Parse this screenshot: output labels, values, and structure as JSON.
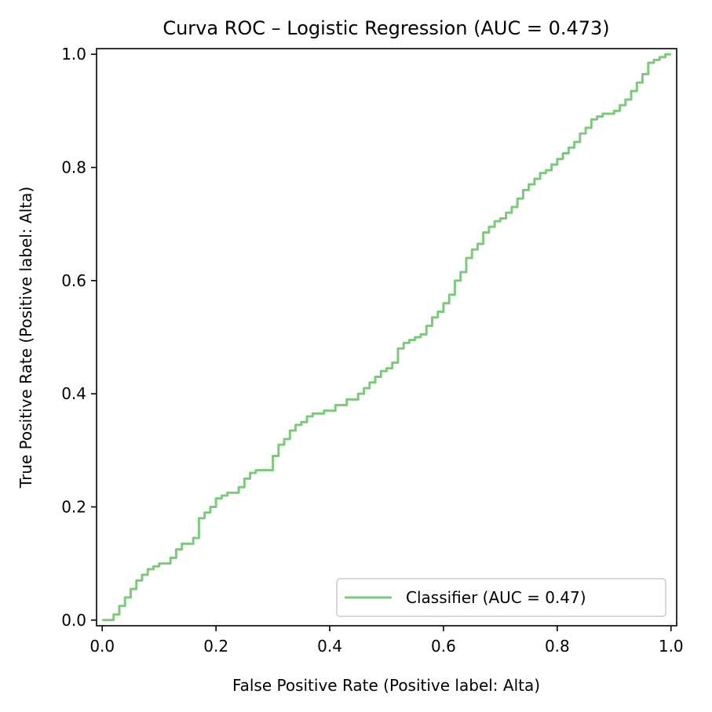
{
  "chart_data": {
    "type": "line",
    "title": "Curva ROC – Logistic Regression (AUC = 0.473)",
    "xlabel": "False Positive Rate (Positive label: Alta)",
    "ylabel": "True Positive Rate (Positive label: Alta)",
    "xlim": [
      -0.01,
      1.01
    ],
    "ylim": [
      -0.01,
      1.01
    ],
    "x_ticks": [
      0.0,
      0.2,
      0.4,
      0.6,
      0.8,
      1.0
    ],
    "y_ticks": [
      0.0,
      0.2,
      0.4,
      0.6,
      0.8,
      1.0
    ],
    "x_tick_labels": [
      "0.0",
      "0.2",
      "0.4",
      "0.6",
      "0.8",
      "1.0"
    ],
    "y_tick_labels": [
      "0.0",
      "0.2",
      "0.4",
      "0.6",
      "0.8",
      "1.0"
    ],
    "grid": false,
    "legend_position": "lower-right",
    "series": [
      {
        "name": "Classifier (AUC = 0.47)",
        "color": "#7fc97f",
        "x": [
          0.0,
          0.01,
          0.02,
          0.03,
          0.04,
          0.05,
          0.06,
          0.07,
          0.08,
          0.09,
          0.1,
          0.12,
          0.13,
          0.14,
          0.16,
          0.17,
          0.17,
          0.18,
          0.19,
          0.2,
          0.21,
          0.22,
          0.24,
          0.25,
          0.26,
          0.27,
          0.28,
          0.3,
          0.31,
          0.32,
          0.33,
          0.34,
          0.35,
          0.36,
          0.37,
          0.39,
          0.41,
          0.43,
          0.45,
          0.46,
          0.47,
          0.48,
          0.49,
          0.5,
          0.51,
          0.52,
          0.53,
          0.54,
          0.55,
          0.56,
          0.57,
          0.58,
          0.59,
          0.6,
          0.61,
          0.62,
          0.63,
          0.64,
          0.65,
          0.66,
          0.67,
          0.68,
          0.69,
          0.7,
          0.71,
          0.72,
          0.73,
          0.74,
          0.75,
          0.76,
          0.77,
          0.78,
          0.79,
          0.8,
          0.81,
          0.82,
          0.83,
          0.84,
          0.85,
          0.86,
          0.87,
          0.88,
          0.9,
          0.91,
          0.92,
          0.93,
          0.94,
          0.95,
          0.96,
          0.97,
          0.98,
          0.99,
          1.0
        ],
        "y": [
          0.0,
          0.0,
          0.01,
          0.025,
          0.04,
          0.055,
          0.07,
          0.08,
          0.09,
          0.095,
          0.1,
          0.11,
          0.125,
          0.135,
          0.145,
          0.155,
          0.18,
          0.19,
          0.2,
          0.215,
          0.22,
          0.225,
          0.235,
          0.25,
          0.26,
          0.265,
          0.265,
          0.29,
          0.31,
          0.32,
          0.335,
          0.345,
          0.35,
          0.36,
          0.365,
          0.37,
          0.38,
          0.39,
          0.4,
          0.41,
          0.42,
          0.43,
          0.44,
          0.445,
          0.455,
          0.48,
          0.49,
          0.495,
          0.5,
          0.505,
          0.52,
          0.535,
          0.545,
          0.56,
          0.575,
          0.6,
          0.615,
          0.64,
          0.655,
          0.665,
          0.685,
          0.695,
          0.705,
          0.71,
          0.72,
          0.73,
          0.745,
          0.76,
          0.77,
          0.78,
          0.79,
          0.795,
          0.805,
          0.815,
          0.825,
          0.835,
          0.845,
          0.86,
          0.87,
          0.885,
          0.89,
          0.895,
          0.9,
          0.91,
          0.92,
          0.935,
          0.95,
          0.965,
          0.985,
          0.99,
          0.995,
          1.0,
          1.0
        ]
      }
    ]
  }
}
